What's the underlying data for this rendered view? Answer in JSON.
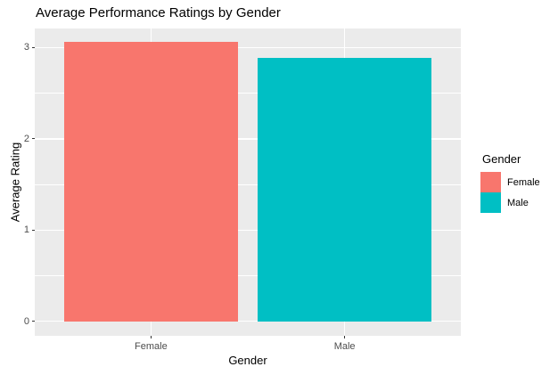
{
  "chart_data": {
    "type": "bar",
    "title": "Average Performance Ratings by Gender",
    "xlabel": "Gender",
    "ylabel": "Average Rating",
    "categories": [
      "Female",
      "Male"
    ],
    "values": [
      3.06,
      2.89
    ],
    "bar_colors": [
      "#F8766D",
      "#00BFC4"
    ],
    "ylim": [
      -0.16,
      3.21
    ],
    "yticks_major": [
      0,
      1,
      2,
      3
    ],
    "ytick_labels": [
      "0",
      "1",
      "2",
      "3"
    ],
    "yticks_minor": [
      0.5,
      1.5,
      2.5
    ],
    "grid": "white major and minor horizontal lines, white vertical lines at category centers, on grey panel",
    "panel_background": "#EBEBEB",
    "grid_color": "#FFFFFF",
    "tick_color": "#333333",
    "tick_label_color": "#4D4D4D",
    "legend": {
      "title": "Gender",
      "position": "right",
      "entries": [
        {
          "label": "Female",
          "color": "#F8766D"
        },
        {
          "label": "Male",
          "color": "#00BFC4"
        }
      ]
    }
  }
}
